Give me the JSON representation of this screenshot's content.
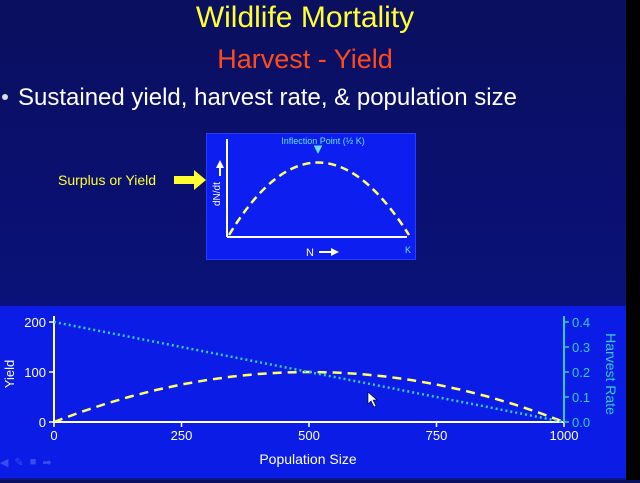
{
  "slide": {
    "title": "Wildlife Mortality",
    "subtitle": "Harvest - Yield",
    "bullet": "Sustained yield, harvest rate, & population size"
  },
  "inset": {
    "label_inflection": "Inflection Point (½ K)",
    "y_label": "dN/dt",
    "x_label": "N",
    "k_label": "K",
    "surplus_label": "Surplus or Yield"
  },
  "chart_data": [
    {
      "type": "line",
      "x": [
        0,
        50,
        100,
        150,
        200,
        250,
        300,
        350,
        400,
        450,
        500,
        550,
        600,
        650,
        700,
        750,
        800,
        850,
        900,
        950,
        1000
      ],
      "series": [
        {
          "name": "Yield",
          "axis": "left",
          "style": "dashed",
          "color": "#ffff66",
          "values": [
            0,
            19,
            36,
            51,
            64,
            75,
            84,
            91,
            96,
            99,
            100,
            99,
            96,
            91,
            84,
            75,
            64,
            51,
            36,
            19,
            0
          ]
        },
        {
          "name": "Harvest Rate",
          "axis": "right",
          "style": "dotted",
          "color": "#33cccc",
          "values": [
            0.4,
            0.38,
            0.36,
            0.34,
            0.32,
            0.3,
            0.28,
            0.26,
            0.24,
            0.22,
            0.2,
            0.18,
            0.16,
            0.14,
            0.12,
            0.1,
            0.08,
            0.06,
            0.04,
            0.02,
            0.0
          ]
        }
      ],
      "xlabel": "Population Size",
      "ylabel": "Yield",
      "y2label": "Harvest Rate",
      "xlim": [
        0,
        1000
      ],
      "ylim": [
        0,
        200
      ],
      "y2lim": [
        0,
        0.4
      ],
      "x_ticks": [
        "0",
        "250",
        "500",
        "750",
        "1000"
      ],
      "y_ticks": [
        "0",
        "100",
        "200"
      ],
      "y2_ticks": [
        "0.0",
        "0.1",
        "0.2",
        "0.3",
        "0.4"
      ],
      "grid": false
    }
  ],
  "colors": {
    "title": "#ffff33",
    "subtitle": "#ff4a1a",
    "yield": "#ffff66",
    "harvest": "#33cccc",
    "right_axis": "#33cccc",
    "left_axis": "#ffffff"
  }
}
